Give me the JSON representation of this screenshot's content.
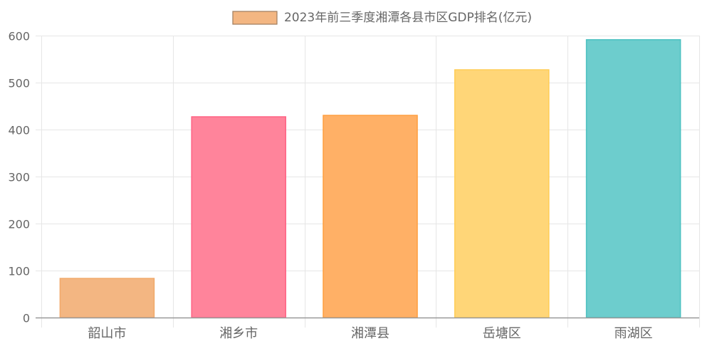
{
  "chart_data": {
    "type": "bar",
    "title": "",
    "legend": {
      "position": "top",
      "entries": [
        {
          "label": "2023年前三季度湘潭各县市区GDP排名(亿元)",
          "color": "#F3B682",
          "border_color": "#9E7C5E"
        }
      ]
    },
    "xlabel": "",
    "ylabel": "",
    "categories": [
      "韶山市",
      "湘乡市",
      "湘潭县",
      "岳塘区",
      "雨湖区"
    ],
    "series": [
      {
        "name": "2023年前三季度湘潭各县市区GDP排名(亿元)",
        "values": [
          84,
          428,
          431,
          528,
          592
        ],
        "colors": [
          "#F3B682",
          "#FF849B",
          "#FFB066",
          "#FFD678",
          "#6DCDCD"
        ],
        "border_colors": [
          "#F1A96A",
          "#FF6384",
          "#FF9F40",
          "#FFCD56",
          "#4BC0C0"
        ]
      }
    ],
    "ylim": [
      0,
      600
    ],
    "yticks": [
      0,
      100,
      200,
      300,
      400,
      500,
      600
    ],
    "grid": true
  }
}
